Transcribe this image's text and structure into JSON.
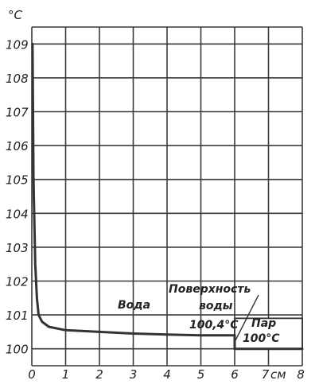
{
  "chart_data": {
    "type": "line",
    "ylabel": "°C",
    "xlabel": "см",
    "xlim": [
      0,
      8
    ],
    "ylim": [
      99.5,
      109.5
    ],
    "grid": true,
    "x_ticks": [
      0,
      1,
      2,
      3,
      4,
      5,
      6,
      7,
      8
    ],
    "x_tick_labels": [
      "0",
      "1",
      "2",
      "3",
      "4",
      "5",
      "6",
      "7",
      "8"
    ],
    "y_ticks": [
      100,
      101,
      102,
      103,
      104,
      105,
      106,
      107,
      108,
      109
    ],
    "y_tick_labels": [
      "100",
      "101",
      "102",
      "103",
      "104",
      "105",
      "106",
      "107",
      "108",
      "109"
    ],
    "series": [
      {
        "x": [
          0.02,
          0.05,
          0.1,
          0.15,
          0.2,
          0.3,
          0.5,
          1,
          2,
          3,
          4,
          5,
          6
        ],
        "values": [
          109,
          105,
          102.5,
          101.5,
          101.0,
          100.8,
          100.65,
          100.55,
          100.5,
          100.45,
          100.42,
          100.4,
          100.4
        ]
      },
      {
        "x": [
          6,
          7,
          8
        ],
        "values": [
          100.0,
          100.0,
          100.0
        ]
      }
    ],
    "annotations": {
      "water": "Вода",
      "surface_line1": "Поверхность",
      "surface_line2": "воды",
      "surface_temp": "100,4°C",
      "vapor_line1": "Пар",
      "vapor_line2": "100°C"
    }
  }
}
